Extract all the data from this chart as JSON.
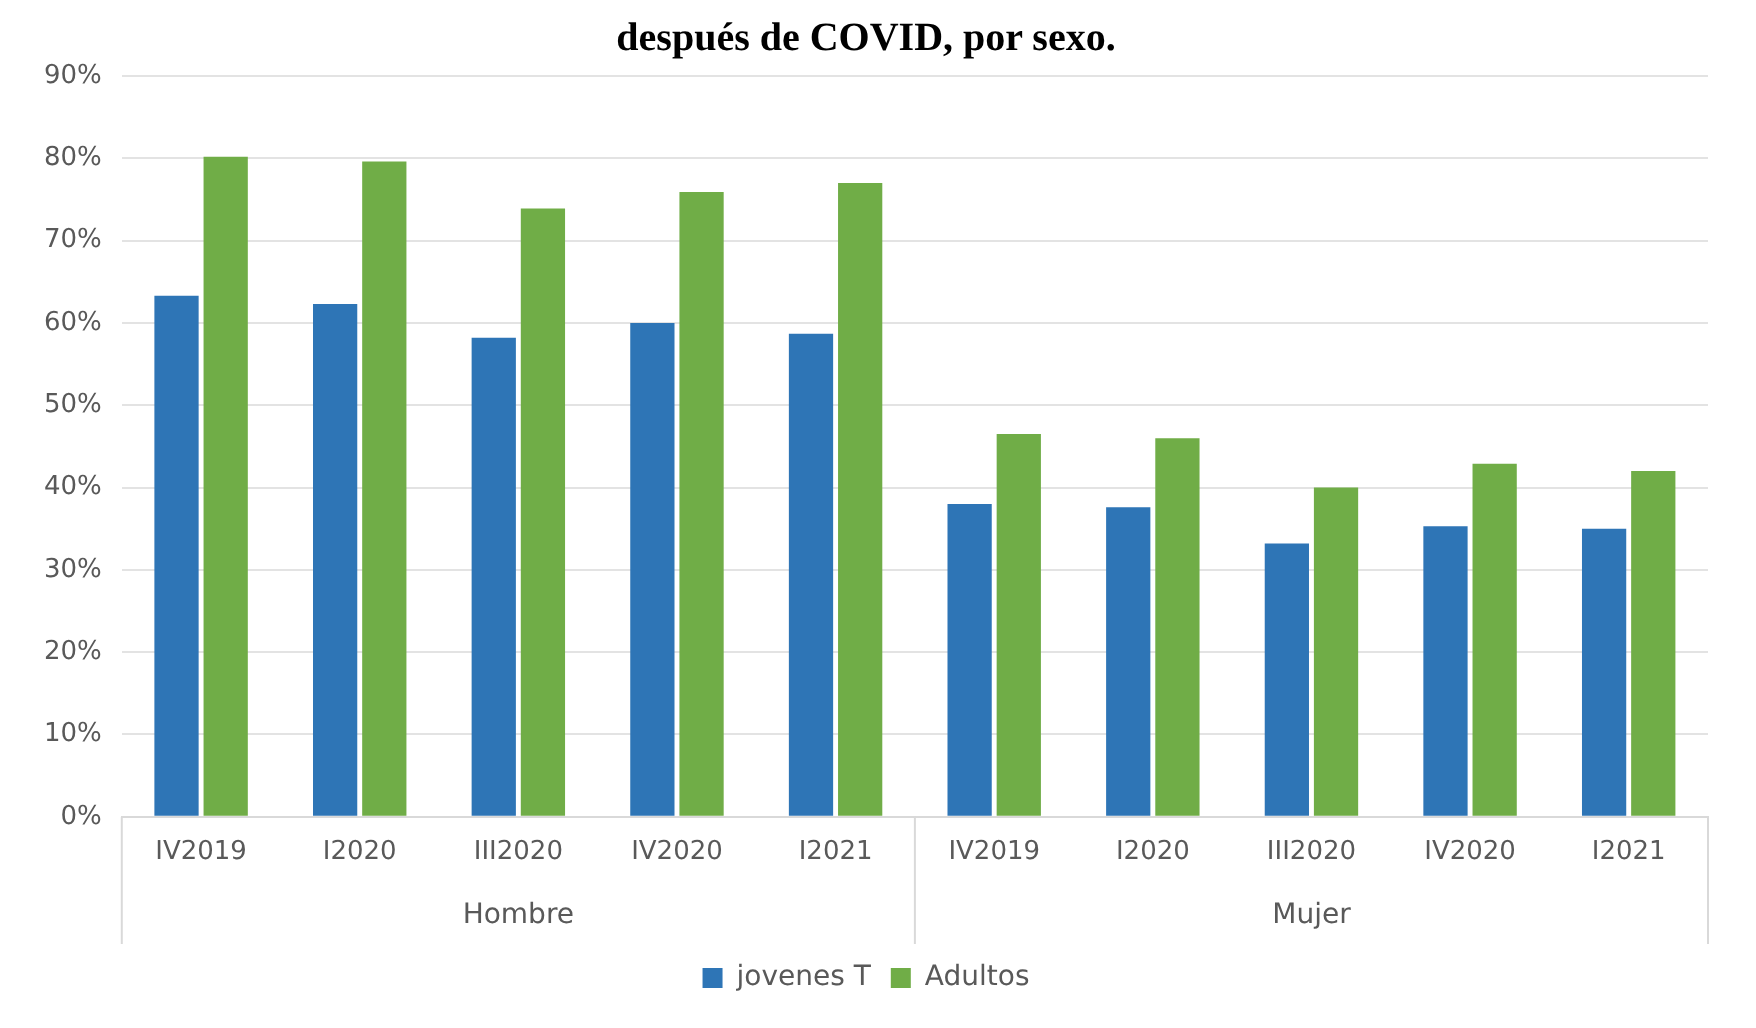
{
  "chart_data": {
    "type": "bar",
    "title": "después de COVID, por sexo.",
    "categories": [
      "IV2019",
      "I2020",
      "III2020",
      "IV2020",
      "I2021",
      "IV2019",
      "I2020",
      "III2020",
      "IV2020",
      "I2021"
    ],
    "annotations": [
      "Hombre",
      "Mujer"
    ],
    "series": [
      {
        "name": "jovenes T",
        "color": "#2e75b6",
        "values": [
          63.3,
          62.3,
          58.2,
          60.0,
          58.7,
          38.0,
          37.6,
          33.2,
          35.3,
          35.0
        ]
      },
      {
        "name": "Adultos",
        "color": "#70ad47",
        "values": [
          80.2,
          79.6,
          73.9,
          75.9,
          77.0,
          46.5,
          46.0,
          40.0,
          42.9,
          42.0
        ]
      }
    ],
    "ylim": [
      0,
      90
    ],
    "yticks": [
      {
        "value": 0,
        "label": "0%"
      },
      {
        "value": 10,
        "label": "10%"
      },
      {
        "value": 20,
        "label": "20%"
      },
      {
        "value": 30,
        "label": "30%"
      },
      {
        "value": 40,
        "label": "40%"
      },
      {
        "value": 50,
        "label": "50%"
      },
      {
        "value": 60,
        "label": "60%"
      },
      {
        "value": 70,
        "label": "70%"
      },
      {
        "value": 80,
        "label": "80%"
      },
      {
        "value": 90,
        "label": "90%"
      }
    ],
    "grid": "y",
    "legend": "bottom"
  }
}
